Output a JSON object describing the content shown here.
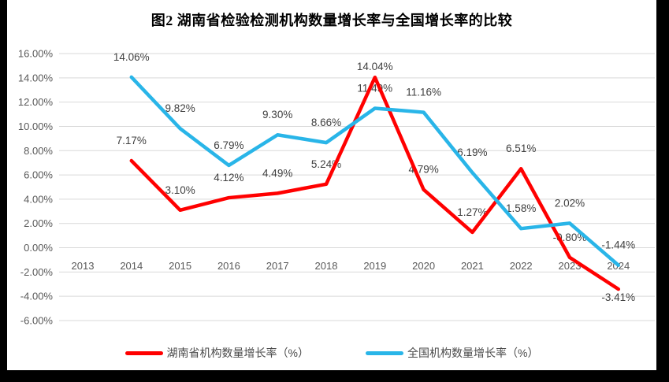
{
  "page": {
    "background_color": "#000000",
    "panel_color": "#FFFFFF"
  },
  "chart_data": {
    "type": "line",
    "title": "图2 湖南省检验检测机构数量增长率与全国增长率的比较",
    "categories": [
      "2013",
      "2014",
      "2015",
      "2016",
      "2017",
      "2018",
      "2019",
      "2020",
      "2021",
      "2022",
      "2023",
      "2024"
    ],
    "series": [
      {
        "name": "湖南省机构数量增长率（%）",
        "color": "#FF0000",
        "values": [
          null,
          7.17,
          3.1,
          4.12,
          4.49,
          5.24,
          14.04,
          4.79,
          1.27,
          6.51,
          -0.8,
          -3.41
        ]
      },
      {
        "name": "全国机构数量增长率（%）",
        "color": "#29B5E8",
        "values": [
          null,
          14.06,
          9.82,
          6.79,
          9.3,
          8.66,
          11.49,
          11.16,
          6.19,
          1.58,
          2.02,
          -1.44
        ]
      }
    ],
    "y_axis": {
      "min": -6,
      "max": 16,
      "step": 2,
      "decimals": 2,
      "tick_suffix": "%"
    },
    "grid": true,
    "legend_position": "bottom",
    "data_labels": true,
    "label_format": "0.00%",
    "grid_color": "#D9D9D9",
    "axis_text_color": "#595959",
    "label_text_color": "#3F3F3F"
  }
}
